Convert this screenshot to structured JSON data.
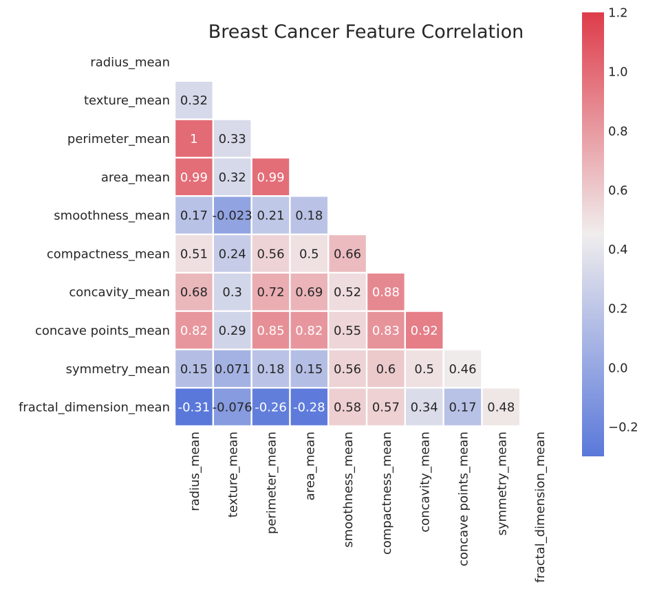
{
  "chart_data": {
    "type": "heatmap",
    "title": "Breast Cancer Feature Correlation",
    "xlabel": "",
    "ylabel": "",
    "variables": [
      "radius_mean",
      "texture_mean",
      "perimeter_mean",
      "area_mean",
      "smoothness_mean",
      "compactness_mean",
      "concavity_mean",
      "concave points_mean",
      "symmetry_mean",
      "fractal_dimension_mean"
    ],
    "mask": "upper triangle including diagonal",
    "values": [
      [
        null,
        null,
        null,
        null,
        null,
        null,
        null,
        null,
        null,
        null
      ],
      [
        0.32,
        null,
        null,
        null,
        null,
        null,
        null,
        null,
        null,
        null
      ],
      [
        1,
        0.33,
        null,
        null,
        null,
        null,
        null,
        null,
        null,
        null
      ],
      [
        0.99,
        0.32,
        0.99,
        null,
        null,
        null,
        null,
        null,
        null,
        null
      ],
      [
        0.17,
        -0.023,
        0.21,
        0.18,
        null,
        null,
        null,
        null,
        null,
        null
      ],
      [
        0.51,
        0.24,
        0.56,
        0.5,
        0.66,
        null,
        null,
        null,
        null,
        null
      ],
      [
        0.68,
        0.3,
        0.72,
        0.69,
        0.52,
        0.88,
        null,
        null,
        null,
        null
      ],
      [
        0.82,
        0.29,
        0.85,
        0.82,
        0.55,
        0.83,
        0.92,
        null,
        null,
        null
      ],
      [
        0.15,
        0.071,
        0.18,
        0.15,
        0.56,
        0.6,
        0.5,
        0.46,
        null,
        null
      ],
      [
        -0.31,
        -0.076,
        -0.26,
        -0.28,
        0.58,
        0.57,
        0.34,
        0.17,
        0.48,
        null
      ]
    ],
    "colorbar": {
      "vmin": -0.3,
      "vmax": 1.2,
      "ticks": [
        -0.2,
        0.0,
        0.2,
        0.4,
        0.6,
        0.8,
        1.0,
        1.2
      ],
      "tick_labels": [
        "−0.2",
        "0.0",
        "0.2",
        "0.4",
        "0.6",
        "0.8",
        "1.0",
        "1.2"
      ],
      "colors": {
        "low": "#5a78da",
        "mid": "#f0eded",
        "high": "#de3c4a"
      }
    },
    "grid": false
  }
}
